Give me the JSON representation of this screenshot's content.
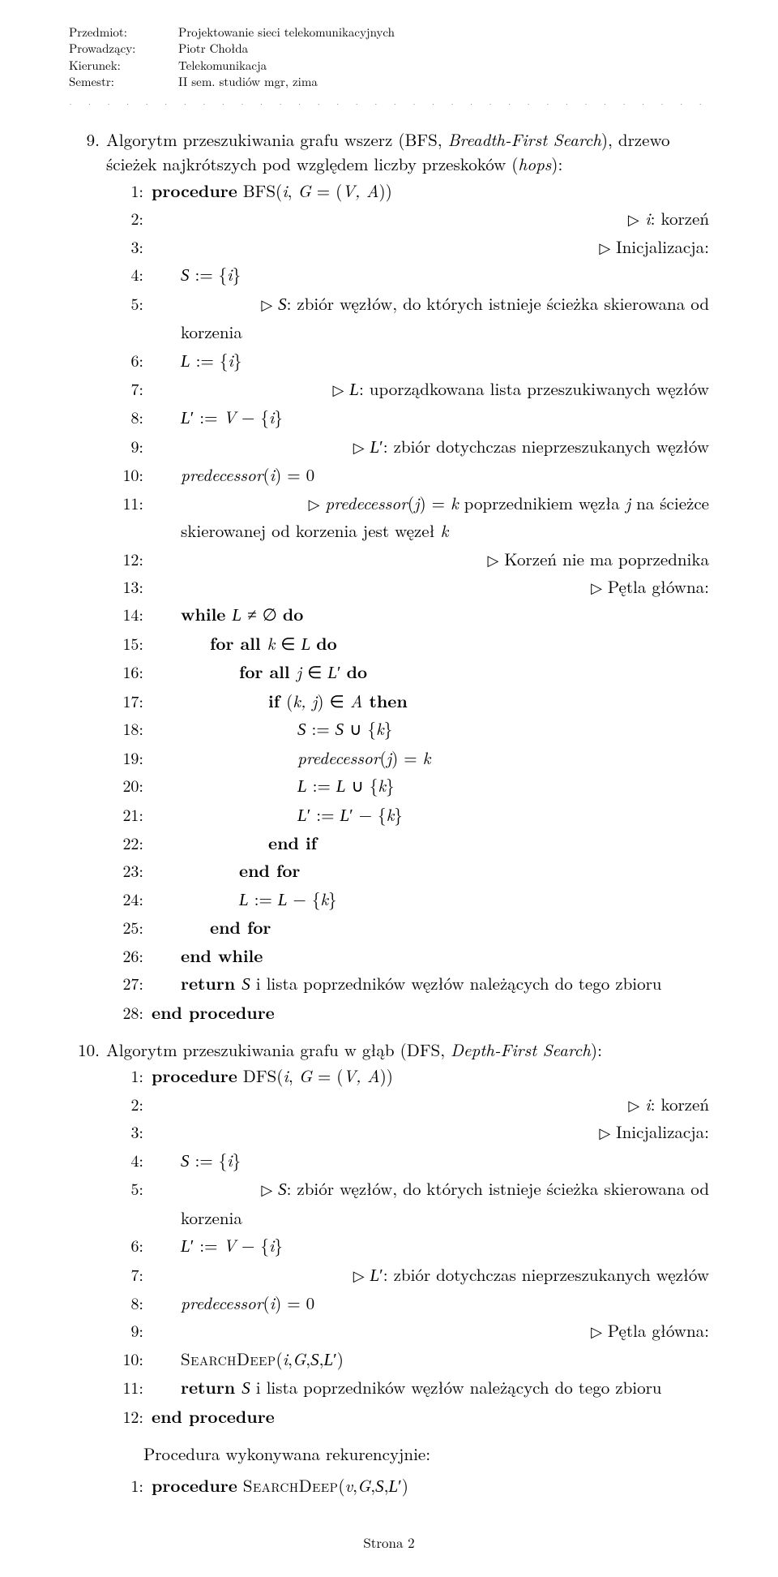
{
  "header": {
    "rows": [
      {
        "label": "Przedmiot:",
        "value": "Projektowanie sieci telekomunikacyjnych"
      },
      {
        "label": "Prowadzący:",
        "value": "Piotr Chołda"
      },
      {
        "label": "Kierunek:",
        "value": "Telekomunikacja"
      },
      {
        "label": "Semestr:",
        "value": "II sem. studiów mgr, zima"
      }
    ]
  },
  "section9": {
    "num": "9.",
    "intro_a": "Algorytm przeszukiwania grafu wszerz (BFS, ",
    "intro_b": "Breadth-First Search",
    "intro_c": "), drzewo ścieżek najkrótszych pod względem liczby przeskoków (",
    "intro_d": "hops",
    "intro_e": "):"
  },
  "bfs": {
    "l1a": "procedure",
    "l1b": " BFS(",
    "l1c": "i",
    "l1d": ", ",
    "l1e": "G",
    "l1f": " = (",
    "l1g": "V, A",
    "l1h": "))",
    "l2": " i",
    "l2b": ": korzeń",
    "l3": " Inicjalizacja:",
    "l4a": "S",
    "l4b": " := {",
    "l4c": "i",
    "l4d": "}",
    "l5a": " ",
    "l5b": "S",
    "l5c": ": zbiór węzłów, do których istnieje ścieżka skierowana od",
    "l5cont": "korzenia",
    "l6a": "L",
    "l6b": " := {",
    "l6c": "i",
    "l6d": "}",
    "l7a": " ",
    "l7b": "L",
    "l7c": ": uporządkowana lista przeszukiwanych węzłów",
    "l8a": "L",
    "l8b": "′ := ",
    "l8c": "V",
    "l8d": " − {",
    "l8e": "i",
    "l8f": "}",
    "l9a": " ",
    "l9b": "L",
    "l9c": "′: zbiór dotychczas nieprzeszukanych węzłów",
    "l10a": "predecessor",
    "l10b": "(",
    "l10c": "i",
    "l10d": ") = 0",
    "l11a": " ",
    "l11b": "predecessor",
    "l11c": "(",
    "l11d": "j",
    "l11e": ") = ",
    "l11f": "k",
    "l11g": " poprzednikiem węzła ",
    "l11h": "j",
    "l11i": " na ścieżce",
    "l11cont_a": "skierowanej od korzenia jest węzeł ",
    "l11cont_b": "k",
    "l12": " Korzeń nie ma poprzednika",
    "l13": " Pętla główna:",
    "l14a": "while ",
    "l14b": "L",
    "l14c": " ≠ ∅ ",
    "l14d": "do",
    "l15a": "for all ",
    "l15b": "k",
    "l15c": " ∈ ",
    "l15d": "L",
    "l15e": " do",
    "l16a": "for all ",
    "l16b": "j",
    "l16c": " ∈ ",
    "l16d": "L",
    "l16e": "′ ",
    "l16f": "do",
    "l17a": "if ",
    "l17b": "(",
    "l17c": "k, j",
    "l17d": ") ∈ ",
    "l17e": "A",
    "l17f": " then",
    "l18a": "S",
    "l18b": " := ",
    "l18c": "S",
    "l18d": " ∪ {",
    "l18e": "k",
    "l18f": "}",
    "l19a": "predecessor",
    "l19b": "(",
    "l19c": "j",
    "l19d": ") = ",
    "l19e": "k",
    "l20a": "L",
    "l20b": " := ",
    "l20c": "L",
    "l20d": " ∪ {",
    "l20e": "k",
    "l20f": "}",
    "l21a": "L",
    "l21b": "′ := ",
    "l21c": "L",
    "l21d": "′ − {",
    "l21e": "k",
    "l21f": "}",
    "l22": "end if",
    "l23": "end for",
    "l24a": "L",
    "l24b": " := ",
    "l24c": "L",
    "l24d": " − {",
    "l24e": "k",
    "l24f": "}",
    "l25": "end for",
    "l26": "end while",
    "l27a": "return ",
    "l27b": "S",
    "l27c": " i lista poprzedników węzłów należących do tego zbioru",
    "l28": "end procedure"
  },
  "section10": {
    "num": "10.",
    "intro_a": "Algorytm przeszukiwania grafu w głąb (DFS, ",
    "intro_b": "Depth-First Search",
    "intro_c": "):"
  },
  "dfs": {
    "l1a": "procedure",
    "l1b": " DFS(",
    "l1c": "i",
    "l1d": ", ",
    "l1e": "G",
    "l1f": " = (",
    "l1g": "V, A",
    "l1h": "))",
    "l2a": " ",
    "l2b": "i",
    "l2c": ": korzeń",
    "l3": " Inicjalizacja:",
    "l4a": "S",
    "l4b": " := {",
    "l4c": "i",
    "l4d": "}",
    "l5a": " ",
    "l5b": "S",
    "l5c": ": zbiór węzłów, do których istnieje ścieżka skierowana od",
    "l5cont": "korzenia",
    "l6a": "L",
    "l6b": "′ := ",
    "l6c": "V",
    "l6d": " − {",
    "l6e": "i",
    "l6f": "}",
    "l7a": " ",
    "l7b": "L",
    "l7c": "′: zbiór dotychczas nieprzeszukanych węzłów",
    "l8a": "predecessor",
    "l8b": "(",
    "l8c": "i",
    "l8d": ") = 0",
    "l9": " Pętla główna:",
    "l10a": "SearchDeep",
    "l10b": "(",
    "l10c": "i",
    "l10d": ",",
    "l10e": "G",
    "l10f": ",",
    "l10g": "S",
    "l10h": ",",
    "l10i": "L",
    "l10j": "′)",
    "l11a": "return ",
    "l11b": "S",
    "l11c": " i lista poprzedników węzłów należących do tego zbioru",
    "l12": "end procedure"
  },
  "recursive": {
    "intro": "Procedura wykonywana rekurencyjnie:",
    "l1a": "procedure",
    "l1b": " SearchDeep",
    "l1c": "(",
    "l1d": "v",
    "l1e": ",",
    "l1f": "G",
    "l1g": ",",
    "l1h": "S",
    "l1i": ",",
    "l1j": "L",
    "l1k": "′)"
  },
  "footer": "Strona 2"
}
